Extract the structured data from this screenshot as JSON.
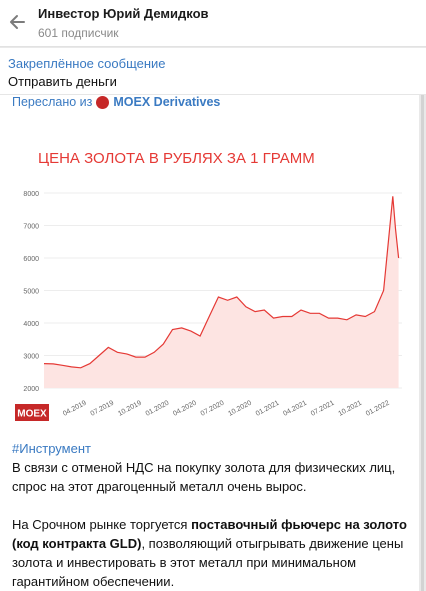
{
  "header": {
    "title": "Инвестор Юрий Демидков",
    "subscribers": "601 подписчик"
  },
  "pinned": {
    "title": "Закреплённое сообщение",
    "text": "Отправить деньги"
  },
  "message": {
    "forward_prefix": "Переслано из",
    "forward_channel": "MOEX Derivatives",
    "hashtag": "#Инструмент",
    "paragraph1": "В связи с отменой НДС на покупку золота для физических лиц, спрос на этот драгоценный металл очень вырос.",
    "p2_before": "На Срочном рынке торгуется ",
    "p2_bold": "поставочный фьючерс на золото (код контракта GLD)",
    "p2_after": ", позволяющий отыгрывать движение цены золота и инвестировать в этот металл при минимальном гарантийном обеспечении.",
    "logo_text": "MOEX"
  },
  "chart_data": {
    "type": "area",
    "title": "ЦЕНА ЗОЛОТА В РУБЛЯХ ЗА 1 ГРАММ",
    "xlabel": "",
    "ylabel": "",
    "ylim": [
      2000,
      8000
    ],
    "yticks": [
      2000,
      3000,
      4000,
      5000,
      6000,
      7000,
      8000
    ],
    "xticks": [
      "04.2019",
      "07.2019",
      "10.2019",
      "01.2020",
      "04.2020",
      "07.2020",
      "10.2020",
      "01.2021",
      "04.2021",
      "07.2021",
      "10.2021",
      "01.2022"
    ],
    "color": "#e53935",
    "series": [
      {
        "x": [
          "2019-01",
          "2019-02",
          "2019-03",
          "2019-04",
          "2019-05",
          "2019-06",
          "2019-07",
          "2019-08",
          "2019-09",
          "2019-10",
          "2019-11",
          "2019-12",
          "2020-01",
          "2020-02",
          "2020-03",
          "2020-04",
          "2020-05",
          "2020-06",
          "2020-07",
          "2020-08",
          "2020-09",
          "2020-10",
          "2020-11",
          "2020-12",
          "2021-01",
          "2021-02",
          "2021-03",
          "2021-04",
          "2021-05",
          "2021-06",
          "2021-07",
          "2021-08",
          "2021-09",
          "2021-10",
          "2021-11",
          "2021-12",
          "2022-01",
          "2022-02",
          "2022-03",
          "2022-03-10",
          "2022-03-20"
        ],
        "values": [
          2750,
          2740,
          2700,
          2650,
          2620,
          2750,
          3000,
          3250,
          3100,
          3050,
          2950,
          2950,
          3100,
          3350,
          3800,
          3850,
          3750,
          3600,
          4200,
          4800,
          4700,
          4800,
          4500,
          4350,
          4400,
          4150,
          4200,
          4200,
          4400,
          4300,
          4300,
          4150,
          4150,
          4100,
          4250,
          4200,
          4350,
          5000,
          7900,
          6900,
          6000
        ]
      }
    ]
  }
}
